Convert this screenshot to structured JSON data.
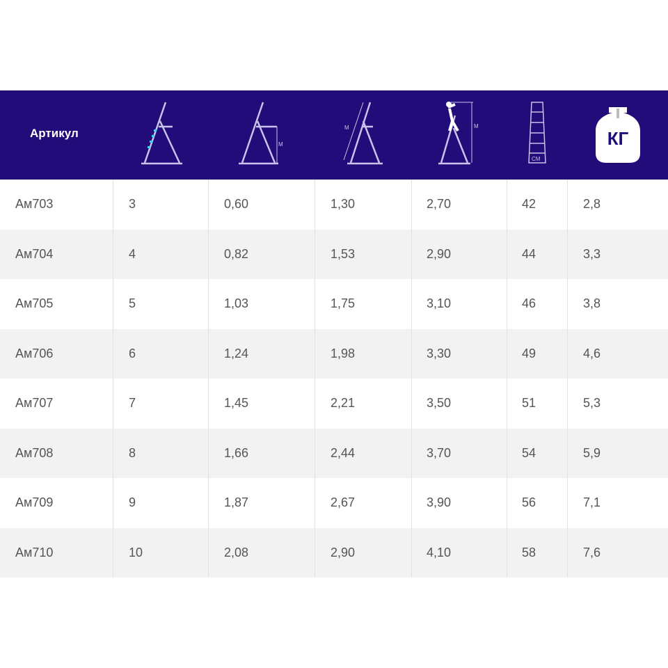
{
  "header": {
    "article_label": "Артикул",
    "icons": [
      "ladder-steps-icon",
      "platform-height-icon",
      "ladder-length-icon",
      "working-height-icon",
      "width-icon",
      "weight-icon"
    ],
    "unit_m": "М",
    "unit_cm": "СМ",
    "unit_kg": "КГ"
  },
  "colors": {
    "header_bg": "#210c79",
    "alt_row": "#f2f2f2",
    "step_highlight": "#3ad0ff"
  },
  "rows": [
    [
      "Ам703",
      "3",
      "0,60",
      "1,30",
      "2,70",
      "42",
      "2,8"
    ],
    [
      "Ам704",
      "4",
      "0,82",
      "1,53",
      "2,90",
      "44",
      "3,3"
    ],
    [
      "Ам705",
      "5",
      "1,03",
      "1,75",
      "3,10",
      "46",
      "3,8"
    ],
    [
      "Ам706",
      "6",
      "1,24",
      "1,98",
      "3,30",
      "49",
      "4,6"
    ],
    [
      "Ам707",
      "7",
      "1,45",
      "2,21",
      "3,50",
      "51",
      "5,3"
    ],
    [
      "Ам708",
      "8",
      "1,66",
      "2,44",
      "3,70",
      "54",
      "5,9"
    ],
    [
      "Ам709",
      "9",
      "1,87",
      "2,67",
      "3,90",
      "56",
      "7,1"
    ],
    [
      "Ам710",
      "10",
      "2,08",
      "2,90",
      "4,10",
      "58",
      "7,6"
    ]
  ]
}
